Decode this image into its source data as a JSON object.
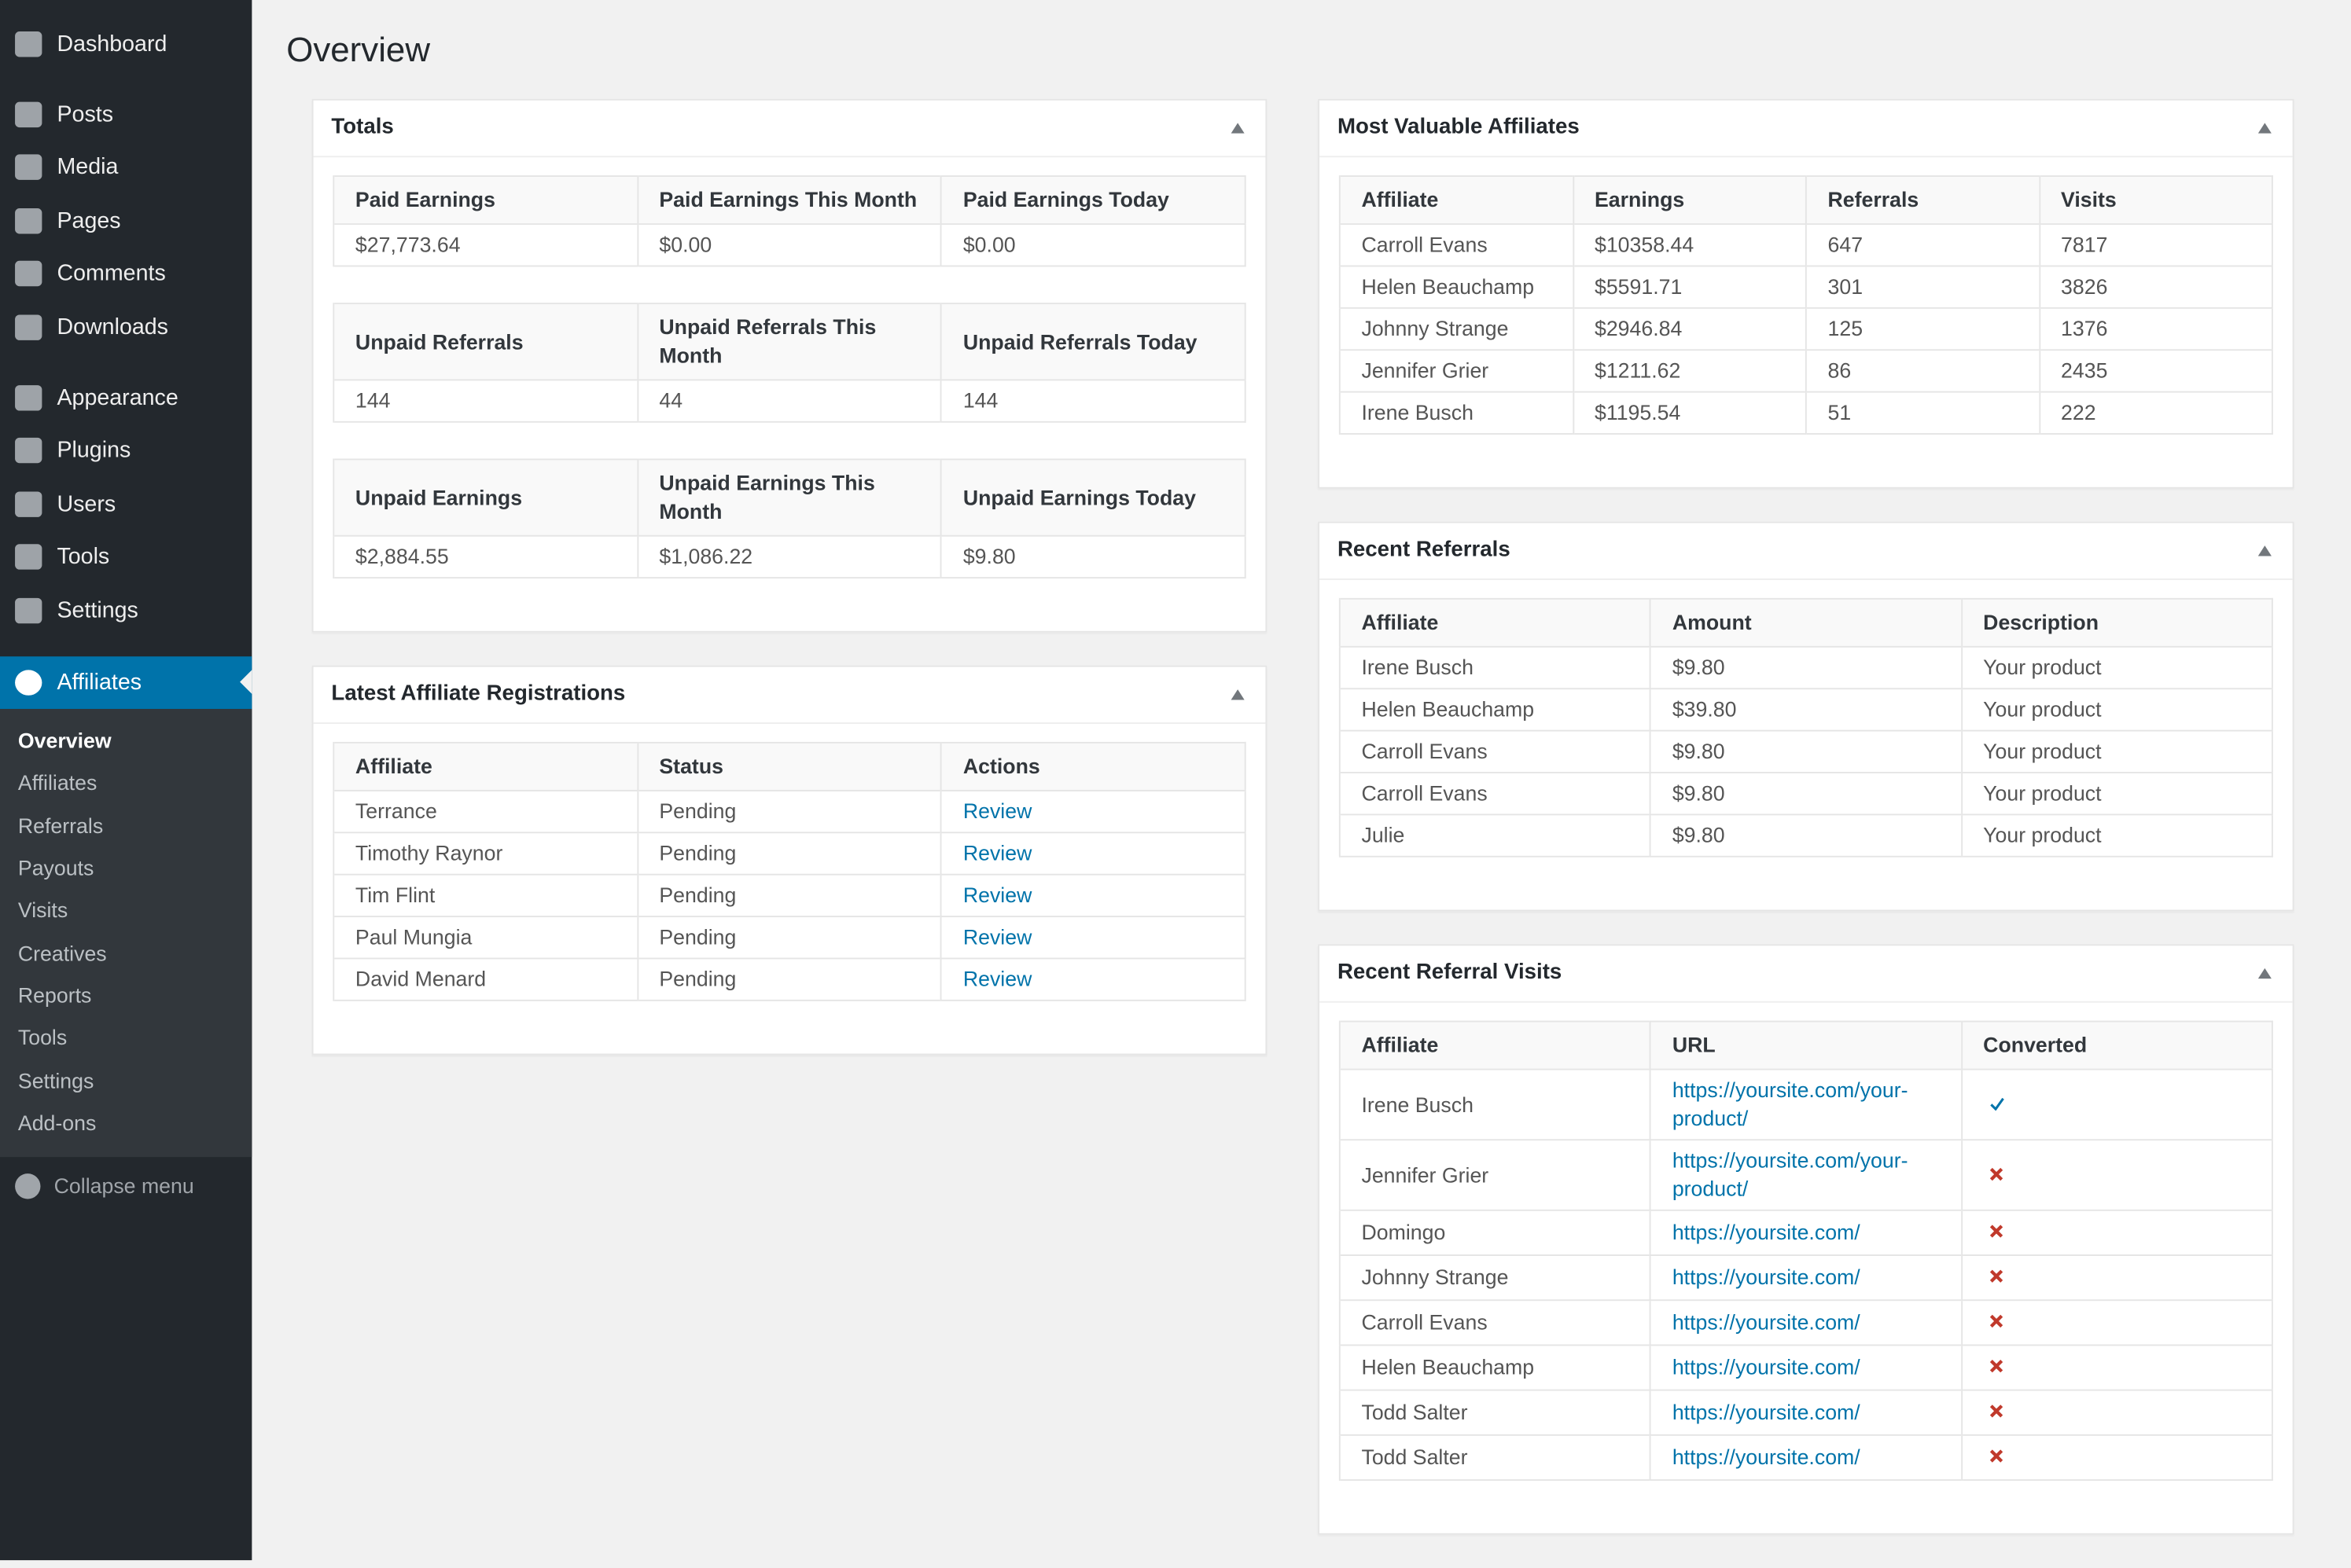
{
  "sidebar": {
    "menu": [
      "Dashboard",
      "Posts",
      "Media",
      "Pages",
      "Comments",
      "Downloads",
      "Appearance",
      "Plugins",
      "Users",
      "Tools",
      "Settings",
      "Affiliates"
    ],
    "submenu": [
      "Overview",
      "Affiliates",
      "Referrals",
      "Payouts",
      "Visits",
      "Creatives",
      "Reports",
      "Tools",
      "Settings",
      "Add-ons"
    ],
    "collapse": "Collapse menu"
  },
  "page": {
    "title": "Overview"
  },
  "totals": {
    "title": "Totals",
    "tables": [
      {
        "headers": [
          "Paid Earnings",
          "Paid Earnings This Month",
          "Paid Earnings Today"
        ],
        "rows": [
          [
            "$27,773.64",
            "$0.00",
            "$0.00"
          ]
        ]
      },
      {
        "headers": [
          "Unpaid Referrals",
          "Unpaid Referrals This Month",
          "Unpaid Referrals Today"
        ],
        "rows": [
          [
            "144",
            "44",
            "144"
          ]
        ]
      },
      {
        "headers": [
          "Unpaid Earnings",
          "Unpaid Earnings This Month",
          "Unpaid Earnings Today"
        ],
        "rows": [
          [
            "$2,884.55",
            "$1,086.22",
            "$9.80"
          ]
        ]
      }
    ]
  },
  "registrations": {
    "title": "Latest Affiliate Registrations",
    "headers": [
      "Affiliate",
      "Status",
      "Actions"
    ],
    "rows": [
      [
        "Terrance",
        "Pending",
        "Review"
      ],
      [
        "Timothy Raynor",
        "Pending",
        "Review"
      ],
      [
        "Tim Flint",
        "Pending",
        "Review"
      ],
      [
        "Paul Mungia",
        "Pending",
        "Review"
      ],
      [
        "David Menard",
        "Pending",
        "Review"
      ]
    ]
  },
  "valuable": {
    "title": "Most Valuable Affiliates",
    "headers": [
      "Affiliate",
      "Earnings",
      "Referrals",
      "Visits"
    ],
    "rows": [
      [
        "Carroll Evans",
        "$10358.44",
        "647",
        "7817"
      ],
      [
        "Helen Beauchamp",
        "$5591.71",
        "301",
        "3826"
      ],
      [
        "Johnny Strange",
        "$2946.84",
        "125",
        "1376"
      ],
      [
        "Jennifer Grier",
        "$1211.62",
        "86",
        "2435"
      ],
      [
        "Irene Busch",
        "$1195.54",
        "51",
        "222"
      ]
    ]
  },
  "referrals": {
    "title": "Recent Referrals",
    "headers": [
      "Affiliate",
      "Amount",
      "Description"
    ],
    "rows": [
      [
        "Irene Busch",
        "$9.80",
        "Your product"
      ],
      [
        "Helen Beauchamp",
        "$39.80",
        "Your product"
      ],
      [
        "Carroll Evans",
        "$9.80",
        "Your product"
      ],
      [
        "Carroll Evans",
        "$9.80",
        "Your product"
      ],
      [
        "Julie",
        "$9.80",
        "Your product"
      ]
    ]
  },
  "visits": {
    "title": "Recent Referral Visits",
    "headers": [
      "Affiliate",
      "URL",
      "Converted"
    ],
    "rows": [
      [
        "Irene Busch",
        "https://yoursite.com/your-product/"
      ],
      [
        "Jennifer Grier",
        "https://yoursite.com/your-product/"
      ],
      [
        "Domingo",
        "https://yoursite.com/"
      ],
      [
        "Johnny Strange",
        "https://yoursite.com/"
      ],
      [
        "Carroll Evans",
        "https://yoursite.com/"
      ],
      [
        "Helen Beauchamp",
        "https://yoursite.com/"
      ],
      [
        "Todd Salter",
        "https://yoursite.com/"
      ],
      [
        "Todd Salter",
        "https://yoursite.com/"
      ]
    ],
    "converted": [
      true,
      false,
      false,
      false,
      false,
      false,
      false,
      false
    ]
  }
}
